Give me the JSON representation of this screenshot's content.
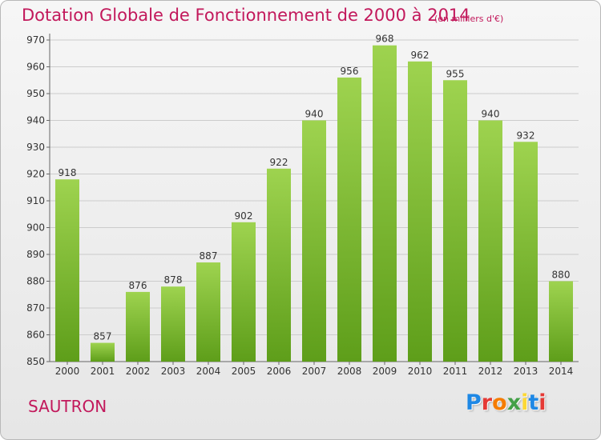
{
  "title": "Dotation Globale de Fonctionnement de 2000 à 2014",
  "unit": "(en milliers d'€)",
  "commune": "SAUTRON",
  "logo": {
    "letters": [
      "P",
      "r",
      "o",
      "x",
      "i",
      "t",
      "i"
    ],
    "colors": [
      "#1e88e5",
      "#e53935",
      "#f57c00",
      "#43a047",
      "#fdd835",
      "#1e88e5",
      "#e53935"
    ]
  },
  "colors": {
    "title": "#c2185b",
    "bar_top": "#9ed34f",
    "bar_bottom": "#5e9e1a",
    "grid": "#cccccc"
  },
  "chart_data": {
    "type": "bar",
    "categories": [
      "2000",
      "2001",
      "2002",
      "2003",
      "2004",
      "2005",
      "2006",
      "2007",
      "2008",
      "2009",
      "2010",
      "2011",
      "2012",
      "2013",
      "2014"
    ],
    "values": [
      918,
      857,
      876,
      878,
      887,
      902,
      922,
      940,
      956,
      968,
      962,
      955,
      940,
      932,
      880
    ],
    "yticks": [
      850,
      860,
      870,
      880,
      890,
      900,
      910,
      920,
      930,
      940,
      950,
      960,
      970
    ],
    "ylim": [
      850,
      970
    ],
    "grid": true,
    "xlabel": "",
    "ylabel": ""
  }
}
